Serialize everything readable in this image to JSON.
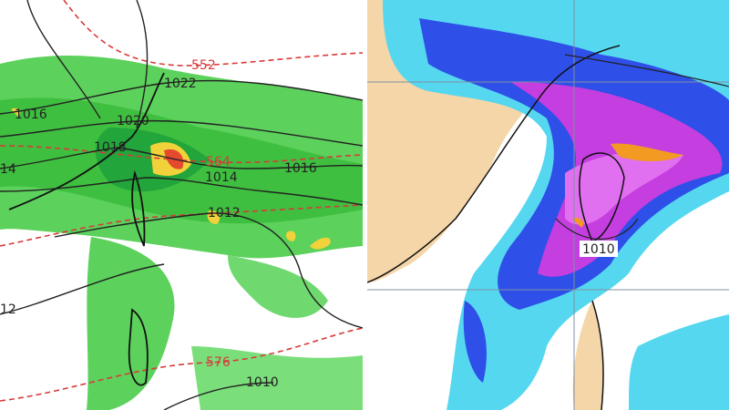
{
  "left_panel": {
    "height_labels": [
      "552",
      "564",
      "576"
    ],
    "isobar_labels": [
      "1022",
      "1016",
      "1020",
      "1018",
      "1014",
      "1016",
      "1012",
      "1010",
      "14",
      "12"
    ]
  },
  "right_panel": {
    "isobar_labels": [
      "1010"
    ]
  }
}
